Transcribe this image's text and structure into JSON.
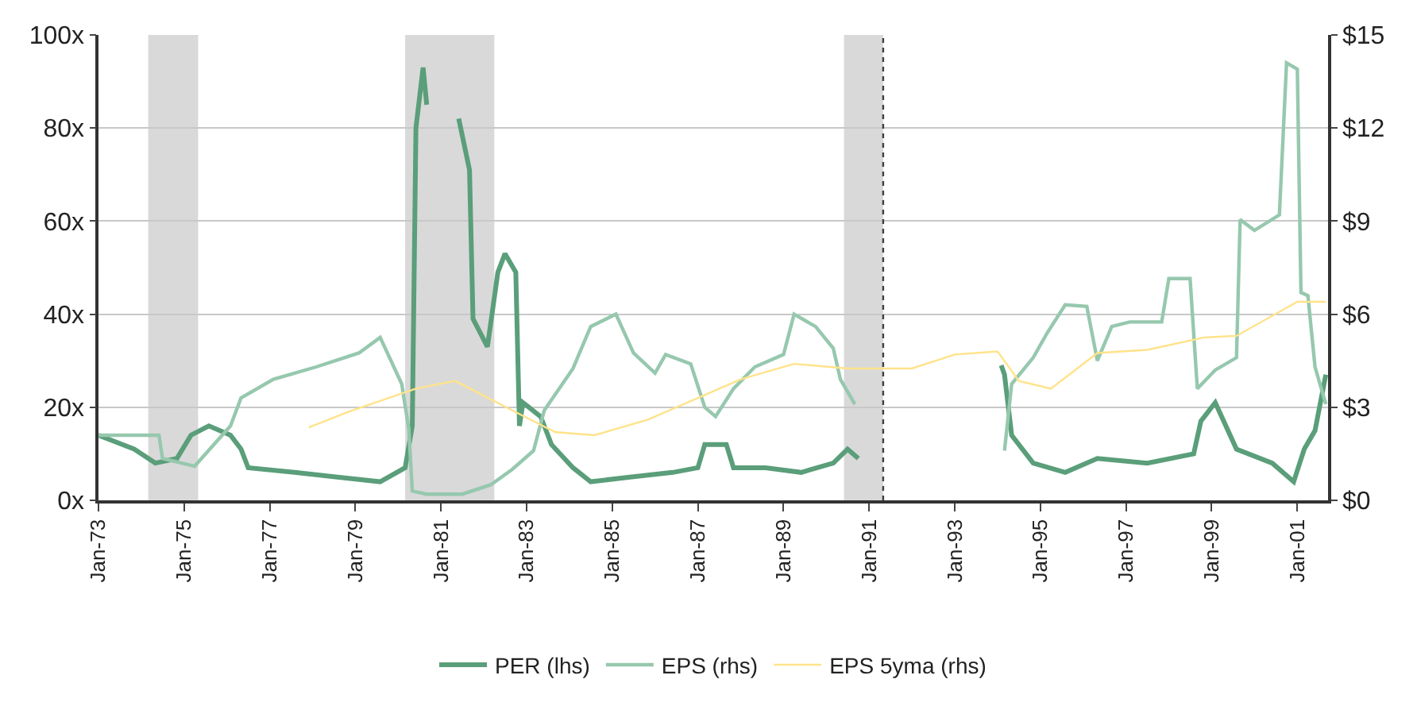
{
  "chart_data": {
    "type": "line",
    "line_style": "solid",
    "marker": "none",
    "grid": "y",
    "legend": "bottom",
    "xlim": [
      "1973-01-01",
      "2001-09-20"
    ],
    "xticks": [
      {
        "value": "1973-01-01",
        "label": "Jan-73"
      },
      {
        "value": "1975-01-01",
        "label": "Jan-75"
      },
      {
        "value": "1977-01-01",
        "label": "Jan-77"
      },
      {
        "value": "1979-01-01",
        "label": "Jan-79"
      },
      {
        "value": "1981-01-01",
        "label": "Jan-81"
      },
      {
        "value": "1983-01-01",
        "label": "Jan-83"
      },
      {
        "value": "1985-01-01",
        "label": "Jan-85"
      },
      {
        "value": "1987-01-01",
        "label": "Jan-87"
      },
      {
        "value": "1989-01-01",
        "label": "Jan-89"
      },
      {
        "value": "1991-01-01",
        "label": "Jan-91"
      },
      {
        "value": "1993-01-01",
        "label": "Jan-93"
      },
      {
        "value": "1995-01-01",
        "label": "Jan-95"
      },
      {
        "value": "1997-01-01",
        "label": "Jan-97"
      },
      {
        "value": "1999-01-01",
        "label": "Jan-99"
      },
      {
        "value": "2001-01-01",
        "label": "Jan-01"
      }
    ],
    "ylim": [
      0,
      100
    ],
    "yticks": [
      {
        "value": 0,
        "label": "0x"
      },
      {
        "value": 20,
        "label": "20x"
      },
      {
        "value": 40,
        "label": "40x"
      },
      {
        "value": 60,
        "label": "60x"
      },
      {
        "value": 80,
        "label": "80x"
      },
      {
        "value": 100,
        "label": "100x"
      }
    ],
    "y2lim": [
      0,
      15
    ],
    "y2ticks": [
      {
        "value": 0,
        "label": "$0"
      },
      {
        "value": 3,
        "label": "$3"
      },
      {
        "value": 6,
        "label": "$6"
      },
      {
        "value": 9,
        "label": "$9"
      },
      {
        "value": 12,
        "label": "$12"
      },
      {
        "value": 15,
        "label": "$15"
      }
    ],
    "bands": [
      {
        "axis": "x",
        "from": "1974-03",
        "to": "1975-05",
        "color": "#d9d9d9"
      },
      {
        "axis": "x",
        "from": "1980-03",
        "to": "1982-04",
        "color": "#d9d9d9"
      },
      {
        "axis": "x",
        "from": "1990-06",
        "to": "1991-05",
        "color": "#d9d9d9"
      }
    ],
    "ref_lines": [
      {
        "axis": "x",
        "value": "1991-05",
        "color": "#404040",
        "line_style": "dotted"
      }
    ],
    "series": [
      {
        "name": "PER (lhs)",
        "color": "#5a9e7a",
        "x": [
          "1973-01",
          "1973-11",
          "1974-05",
          "1974-11",
          "1975-03",
          "1975-08",
          "1976-02",
          "1976-05",
          "1976-07",
          "1977-08",
          "1978-08",
          "1979-08",
          "1980-03",
          "1980-05",
          "1980-06",
          "1980-08",
          "1980-09",
          "1981-01",
          "1981-06",
          "1981-09",
          "1981-10",
          "1982-02",
          "1982-05",
          "1982-07",
          "1982-10",
          "1982-11",
          "1982-12",
          "1983-05",
          "1983-08",
          "1984-02",
          "1984-07",
          "1985-06",
          "1986-06",
          "1987-01",
          "1987-03",
          "1987-09",
          "1987-11",
          "1988-08",
          "1989-06",
          "1990-03",
          "1990-07",
          "1990-10",
          "1992-06",
          "1994-02",
          "1994-03",
          "1994-05",
          "1994-11",
          "1995-08",
          "1996-05",
          "1997-07",
          "1998-08",
          "1998-10",
          "1999-02",
          "1999-08",
          "2000-06",
          "2000-12",
          "2001-03",
          "2001-06",
          "2001-09"
        ],
        "values": [
          14,
          11,
          8,
          9,
          14,
          16,
          14,
          11,
          7,
          6,
          5,
          4,
          7,
          16,
          80,
          93,
          85,
          null,
          82,
          71,
          39,
          33,
          49,
          53,
          49,
          16,
          21,
          18,
          12,
          7,
          4,
          5,
          6,
          7,
          12,
          12,
          7,
          7,
          6,
          8,
          11,
          9,
          null,
          29,
          27,
          14,
          8,
          6,
          9,
          8,
          10,
          17,
          21,
          11,
          8,
          4,
          11,
          15,
          27
        ]
      },
      {
        "name": "EPS (rhs)",
        "color": "#96c8ae",
        "axis": "y2",
        "x": [
          "1973-01",
          "1974-06",
          "1974-07",
          "1975-04",
          "1976-02",
          "1976-05",
          "1977-02",
          "1978-02",
          "1979-02",
          "1979-08",
          "1980-02",
          "1980-04",
          "1980-05",
          "1980-09",
          "1981-07",
          "1982-03",
          "1982-09",
          "1983-03",
          "1983-06",
          "1984-02",
          "1984-07",
          "1985-02",
          "1985-07",
          "1986-01",
          "1986-04",
          "1986-11",
          "1987-03",
          "1987-06",
          "1987-11",
          "1988-05",
          "1989-01",
          "1989-04",
          "1989-10",
          "1990-03",
          "1990-05",
          "1990-09",
          "1992-06",
          "1994-03",
          "1994-05",
          "1994-11",
          "1995-03",
          "1995-08",
          "1996-02",
          "1996-05",
          "1996-09",
          "1997-02",
          "1997-11",
          "1998-01",
          "1998-07",
          "1998-09",
          "1999-02",
          "1999-08",
          "1999-09",
          "2000-01",
          "2000-08",
          "2000-10",
          "2001-01",
          "2001-02",
          "2001-04",
          "2001-06",
          "2001-09"
        ],
        "values": [
          2.1,
          2.1,
          1.35,
          1.1,
          2.4,
          3.3,
          3.9,
          4.3,
          4.75,
          5.25,
          3.75,
          2.3,
          0.3,
          0.2,
          0.2,
          0.5,
          1.0,
          1.6,
          2.9,
          4.25,
          5.6,
          6.0,
          4.75,
          4.1,
          4.7,
          4.4,
          3.0,
          2.7,
          3.6,
          4.3,
          4.7,
          6.0,
          5.6,
          4.9,
          3.9,
          3.1,
          null,
          1.6,
          3.75,
          4.6,
          5.4,
          6.3,
          6.25,
          4.5,
          5.6,
          5.75,
          5.75,
          7.15,
          7.15,
          3.6,
          4.2,
          4.6,
          9.05,
          8.7,
          9.2,
          14.1,
          13.9,
          6.7,
          6.6,
          4.3,
          3.1
        ]
      },
      {
        "name": "EPS 5yma (rhs)",
        "color": "#ffe38a",
        "axis": "y2",
        "x": [
          "1977-12",
          "1978-11",
          "1980-06",
          "1981-05",
          "1982-09",
          "1983-09",
          "1984-08",
          "1985-11",
          "1986-12",
          "1988-01",
          "1989-04",
          "1990-07",
          "1992-01",
          "1993-01",
          "1994-01",
          "1994-07",
          "1995-04",
          "1996-05",
          "1997-07",
          "1998-11",
          "1999-08",
          "2001-01",
          "2001-09"
        ],
        "values": [
          2.35,
          2.85,
          3.6,
          3.85,
          2.9,
          2.2,
          2.1,
          2.6,
          3.25,
          3.9,
          4.4,
          4.25,
          4.25,
          4.7,
          4.8,
          3.85,
          3.6,
          4.75,
          4.85,
          5.25,
          5.3,
          6.4,
          6.4
        ]
      }
    ]
  }
}
